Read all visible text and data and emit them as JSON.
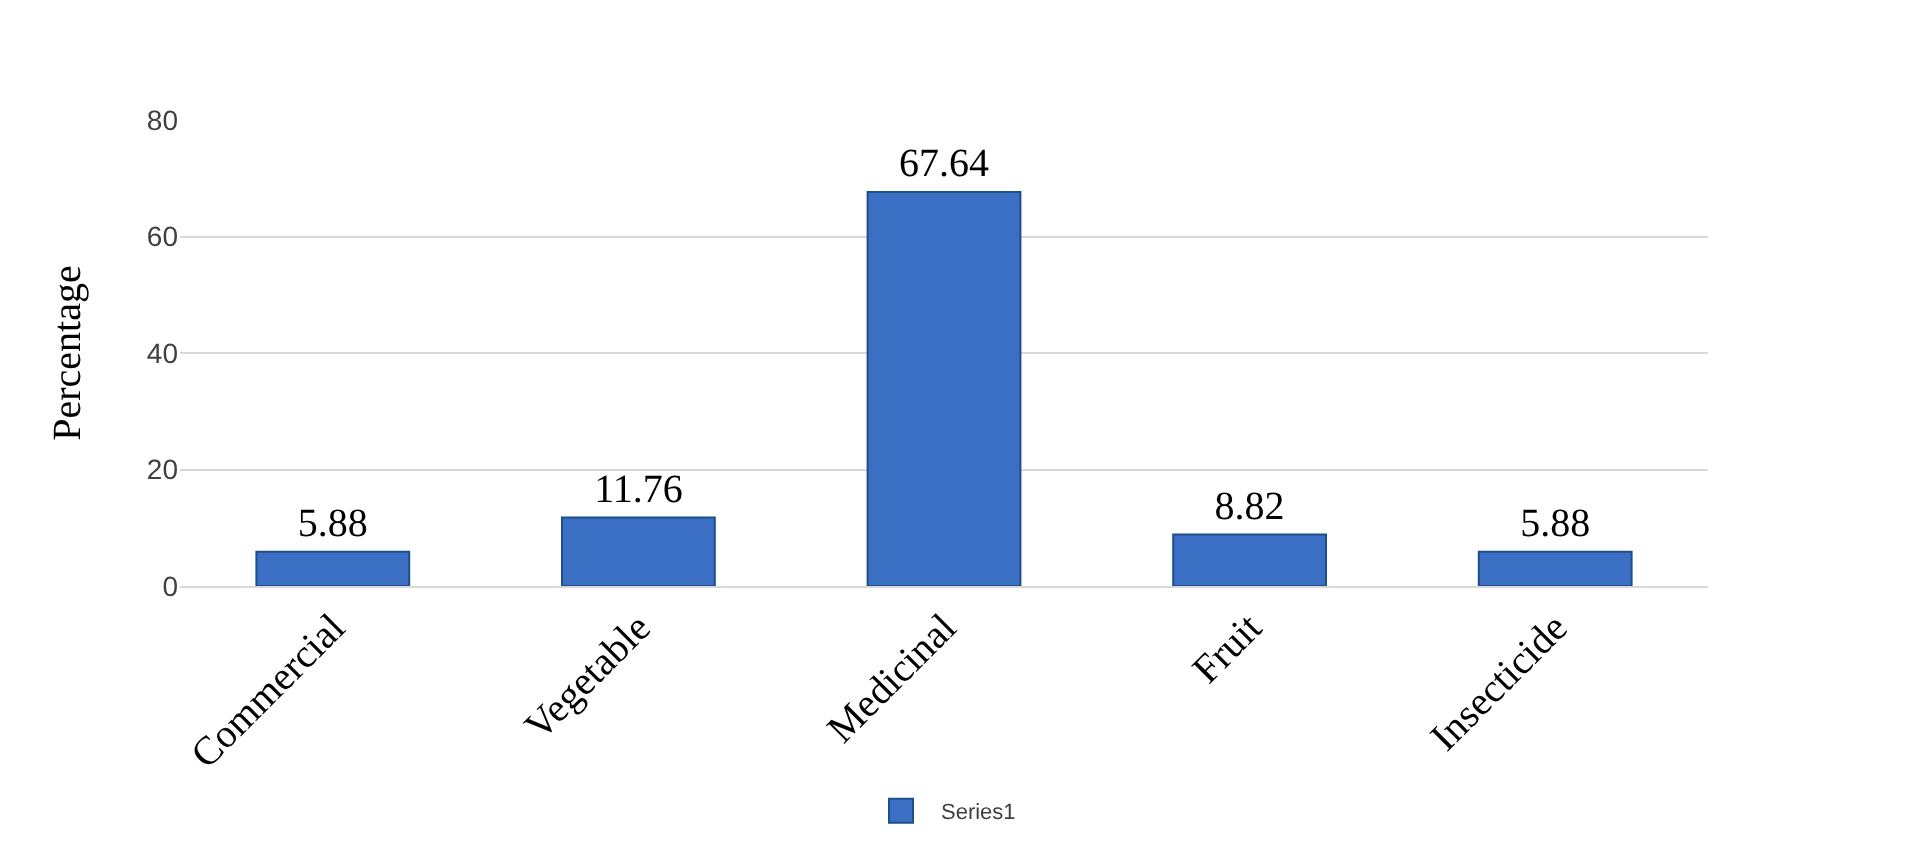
{
  "chart_data": {
    "type": "bar",
    "ylabel": "Percentage",
    "categories": [
      "Commercial",
      "Vegetable",
      "Medicinal",
      "Fruit",
      "Insecticide"
    ],
    "series": [
      {
        "name": "Series1",
        "color": "#3a6fc4",
        "values": [
          5.88,
          11.76,
          67.64,
          8.82,
          5.88
        ]
      }
    ],
    "ylim": [
      0,
      80
    ],
    "yticks": [
      0,
      20,
      40,
      60,
      80
    ],
    "grid": "y",
    "data_labels": true,
    "legend": "bottom"
  }
}
